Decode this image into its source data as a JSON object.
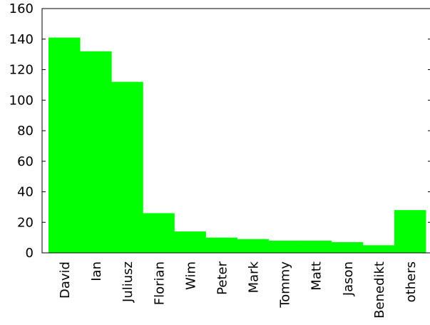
{
  "chart_data": {
    "type": "bar",
    "categories": [
      "David",
      "Ian",
      "Juliusz",
      "Florian",
      "Wim",
      "Peter",
      "Mark",
      "Tommy",
      "Matt",
      "Jason",
      "Benedikt",
      "others"
    ],
    "values": [
      141,
      132,
      112,
      26,
      14,
      10,
      9,
      8,
      8,
      7,
      5,
      28
    ],
    "ylim": [
      0,
      160
    ],
    "yticks": [
      0,
      20,
      40,
      60,
      80,
      100,
      120,
      140,
      160
    ],
    "ytick_labels": [
      "0",
      "20",
      "40",
      "60",
      "80",
      "100",
      "120",
      "140",
      "160"
    ],
    "title": "",
    "xlabel": "",
    "ylabel": "",
    "grid": false,
    "bar_color": "#00ff00",
    "axis_color": "#000000"
  }
}
